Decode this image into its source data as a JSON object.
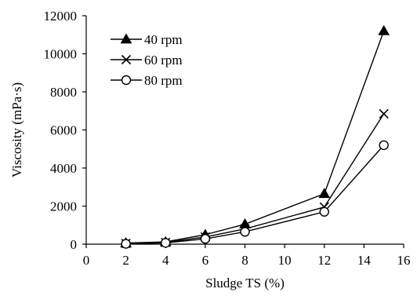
{
  "chart_data": {
    "type": "line",
    "title": "",
    "xlabel": "Sludge TS (%)",
    "ylabel": "Viscosity (mPa·s)",
    "xlim": [
      0,
      16
    ],
    "ylim": [
      0,
      12000
    ],
    "xticks": [
      0,
      2,
      4,
      6,
      8,
      10,
      12,
      14,
      16
    ],
    "yticks": [
      0,
      2000,
      4000,
      6000,
      8000,
      10000,
      12000
    ],
    "grid": false,
    "legend_position": "top-left",
    "x": [
      2,
      4,
      6,
      8,
      12,
      15
    ],
    "series": [
      {
        "name": "40 rpm",
        "marker": "filled-triangle",
        "values": [
          60,
          120,
          500,
          1050,
          2650,
          11200
        ]
      },
      {
        "name": "60 rpm",
        "marker": "x",
        "values": [
          40,
          90,
          380,
          800,
          1950,
          6850
        ]
      },
      {
        "name": "80 rpm",
        "marker": "open-circle",
        "values": [
          20,
          70,
          280,
          650,
          1700,
          5200
        ]
      }
    ],
    "colors": {
      "line": "#000000",
      "marker_fill_open": "#ffffff"
    }
  }
}
